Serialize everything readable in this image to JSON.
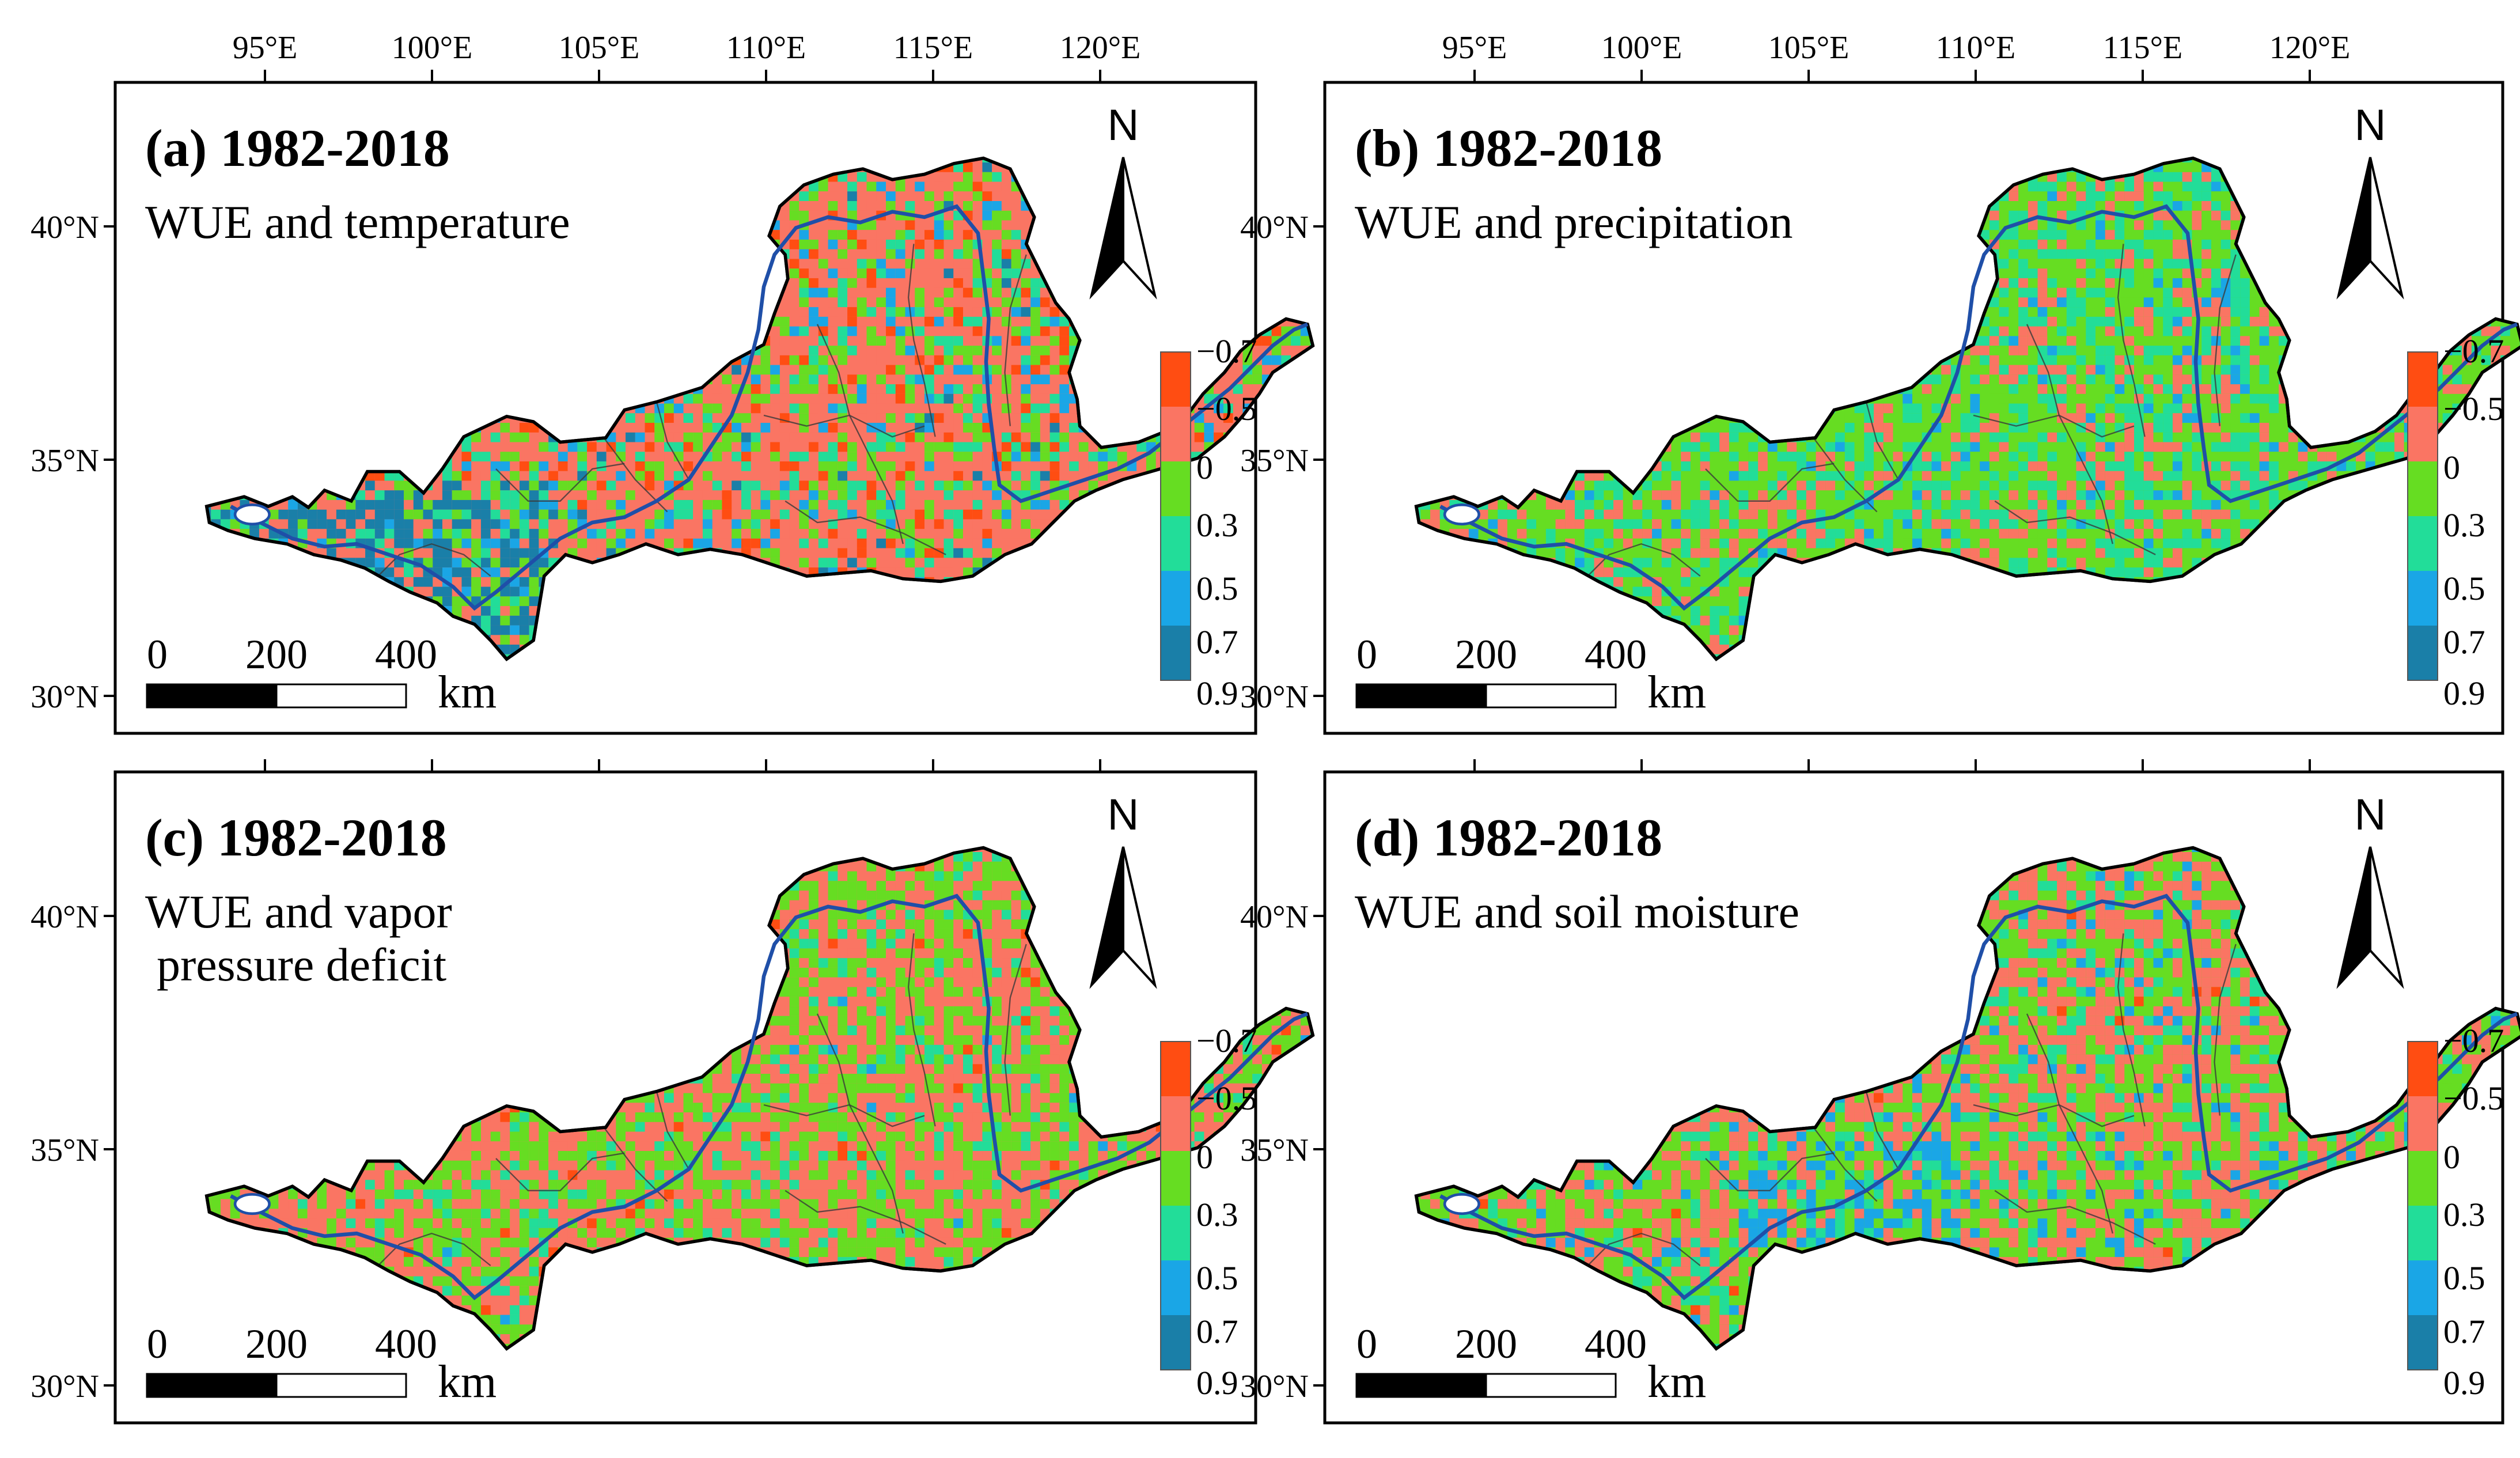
{
  "figure": {
    "legend_title": "",
    "legend": {
      "labels": [
        "−0.7",
        "−0.5",
        "0",
        "0.3",
        "0.5",
        "0.7",
        "0.9"
      ],
      "colors": [
        "#ff4d12",
        "#fa7563",
        "#66dd22",
        "#22dd99",
        "#1aa6e6",
        "#1a7fa8"
      ]
    },
    "scale_bar": {
      "labels": [
        "0",
        "200",
        "400"
      ],
      "unit": "km"
    },
    "north_arrow": {
      "letter": "N"
    },
    "lon_labels": [
      "95°E",
      "100°E",
      "105°E",
      "110°E",
      "115°E",
      "120°E"
    ],
    "lat_labels": [
      "40°N",
      "35°N",
      "30°N"
    ],
    "panels": [
      {
        "id": "a",
        "label": "(a) 1982-2018",
        "subtitle_lines": [
          "WUE and temperature"
        ],
        "variable": "temperature",
        "base_color": "#fa7563",
        "class_mix": {
          "-0.7": 0.08,
          "-0.5": 0.52,
          "0": 0.18,
          "0.3": 0.12,
          "0.5": 0.08,
          "0.7": 0.02
        },
        "show_lon_labels": true
      },
      {
        "id": "b",
        "label": "(b) 1982-2018",
        "subtitle_lines": [
          "WUE and precipitation"
        ],
        "variable": "precipitation",
        "base_color": "#66dd22",
        "class_mix": {
          "-0.7": 0.0,
          "-0.5": 0.2,
          "0": 0.46,
          "0.3": 0.3,
          "0.5": 0.04,
          "0.7": 0.0
        },
        "show_lon_labels": true
      },
      {
        "id": "c",
        "label": "(c) 1982-2018",
        "subtitle_lines": [
          "WUE and vapor",
          "pressure deficit"
        ],
        "variable": "vapor pressure deficit",
        "base_color": "#fa7563",
        "class_mix": {
          "-0.7": 0.02,
          "-0.5": 0.48,
          "0": 0.38,
          "0.3": 0.11,
          "0.5": 0.01,
          "0.7": 0.0
        },
        "show_lon_labels": false
      },
      {
        "id": "d",
        "label": "(d) 1982-2018",
        "subtitle_lines": [
          "WUE and soil moisture"
        ],
        "variable": "soil moisture",
        "base_color": "#66dd22",
        "class_mix": {
          "-0.7": 0.01,
          "-0.5": 0.42,
          "0": 0.36,
          "0.3": 0.15,
          "0.5": 0.06,
          "0.7": 0.0
        },
        "show_lon_labels": false
      }
    ]
  }
}
